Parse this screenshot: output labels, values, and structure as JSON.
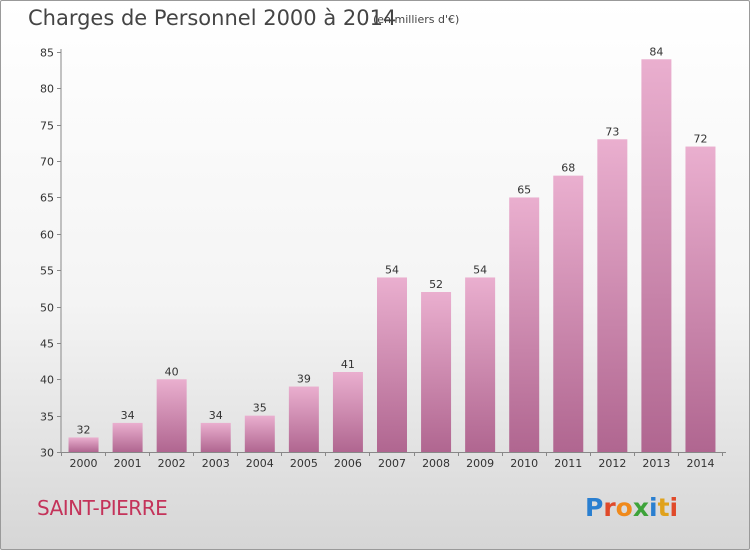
{
  "title": "Charges de Personnel 2000 à 2014",
  "unit": "(en milliers d'€)",
  "place": "SAINT-PIERRE",
  "brand": "Proxiti",
  "colors": {
    "bar_light": "#eaafcf",
    "bar_dark": "#b06690",
    "place_text": "#c4335a"
  },
  "chart_data": {
    "type": "bar",
    "title": "Charges de Personnel 2000 à 2014",
    "categories": [
      "2000",
      "2001",
      "2002",
      "2003",
      "2004",
      "2005",
      "2006",
      "2007",
      "2008",
      "2009",
      "2010",
      "2011",
      "2012",
      "2013",
      "2014"
    ],
    "values": [
      32,
      34,
      40,
      34,
      35,
      39,
      41,
      54,
      52,
      54,
      65,
      68,
      73,
      84,
      72
    ],
    "ylim": [
      30,
      85
    ],
    "yticks": [
      30,
      35,
      40,
      45,
      50,
      55,
      60,
      65,
      70,
      75,
      80,
      85
    ],
    "grid": false,
    "legend": "none"
  }
}
